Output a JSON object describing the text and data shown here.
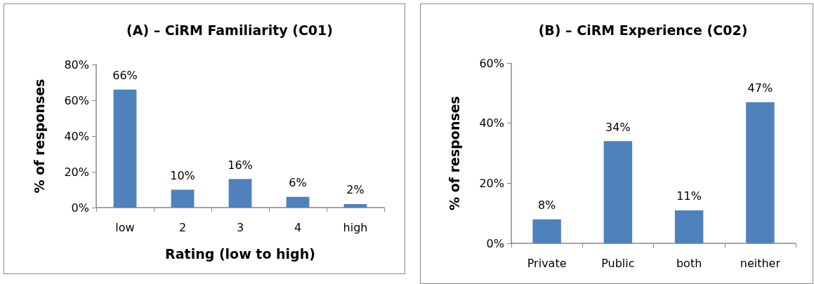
{
  "chart_data": [
    {
      "type": "bar",
      "title": "(A) – CiRM Familiarity (C01)",
      "xlabel": "Rating (low to high)",
      "ylabel": "% of responses",
      "categories": [
        "low",
        "2",
        "3",
        "4",
        "high"
      ],
      "series": [
        {
          "color": "#4f81bd",
          "values": [
            66,
            10,
            16,
            6,
            2
          ],
          "value_labels": [
            "66%",
            "10%",
            "16%",
            "6%",
            "2%"
          ]
        }
      ],
      "ylim": [
        0,
        80
      ],
      "yticks": [
        {
          "value": 0,
          "label": "0%"
        },
        {
          "value": 20,
          "label": "20%"
        },
        {
          "value": 40,
          "label": "40%"
        },
        {
          "value": 60,
          "label": "60%"
        },
        {
          "value": 80,
          "label": "80%"
        }
      ],
      "grid": false
    },
    {
      "type": "bar",
      "title": "(B) – CiRM Experience (C02)",
      "ylabel": "% of responses",
      "categories": [
        "Private",
        "Public",
        "both",
        "neither"
      ],
      "series": [
        {
          "color": "#4f81bd",
          "values": [
            8,
            34,
            11,
            47
          ],
          "value_labels": [
            "8%",
            "34%",
            "11%",
            "47%"
          ]
        }
      ],
      "ylim": [
        0,
        60
      ],
      "yticks": [
        {
          "value": 0,
          "label": "0%"
        },
        {
          "value": 20,
          "label": "20%"
        },
        {
          "value": 40,
          "label": "40%"
        },
        {
          "value": 60,
          "label": "60%"
        }
      ],
      "grid": false
    }
  ]
}
